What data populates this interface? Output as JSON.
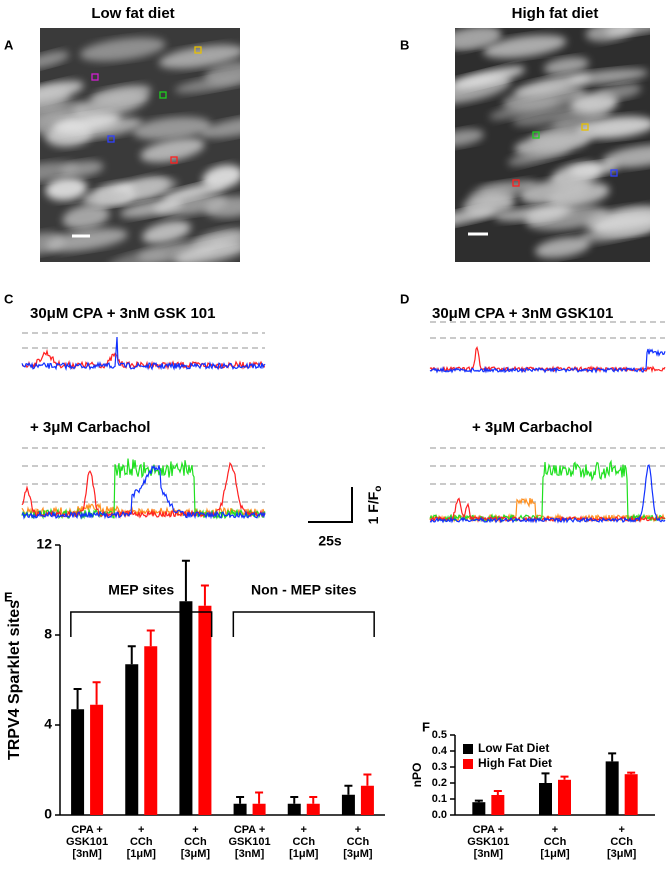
{
  "panels": {
    "A": {
      "letter": "A",
      "title": "Low fat diet"
    },
    "B": {
      "letter": "B",
      "title": "High fat diet"
    },
    "C": {
      "letter": "C",
      "label_top": "30μM  CPA + 3nM GSK 101",
      "label_bottom": "+ 3μM Carbachol"
    },
    "D": {
      "letter": "D",
      "label_top": "30μM  CPA + 3nM GSK101",
      "label_bottom": "+ 3μM Carbachol"
    },
    "scale_bar": {
      "time": "25s",
      "amplitude": "1 F/F",
      "amplitude_sub": "o"
    }
  },
  "chart_data": [
    {
      "type": "bar",
      "panel_letter": "E",
      "ylabel": "TRPV4 Sparklet sites",
      "annotations": [
        "MEP sites",
        "Non - MEP sites"
      ],
      "categories": [
        [
          "CPA +",
          "GSK101",
          "[3nM]"
        ],
        [
          "+",
          "CCh",
          "[1μM]"
        ],
        [
          "+",
          "CCh",
          "[3μM]"
        ],
        [
          "CPA +",
          "GSK101",
          "[3nM]"
        ],
        [
          "+",
          "CCh",
          "[1μM]"
        ],
        [
          "+",
          "CCh",
          "[3μM]"
        ]
      ],
      "series": [
        {
          "color": "#000000",
          "values": [
            4.7,
            6.7,
            9.5,
            0.5,
            0.5,
            0.9
          ],
          "errors": [
            0.9,
            0.8,
            1.8,
            0.3,
            0.3,
            0.4
          ]
        },
        {
          "color": "#ff0000",
          "values": [
            4.9,
            7.5,
            9.3,
            0.5,
            0.5,
            1.3
          ],
          "errors": [
            1.0,
            0.7,
            0.9,
            0.5,
            0.3,
            0.5
          ]
        }
      ],
      "ylim": [
        0,
        12
      ],
      "yticks": [
        0,
        4,
        8,
        12
      ]
    },
    {
      "type": "bar",
      "panel_letter": "F",
      "ylabel": "nPO",
      "legend": "upper left",
      "categories": [
        [
          "CPA +",
          "GSK101",
          "[3nM]"
        ],
        [
          "+",
          "CCh",
          "[1μM]"
        ],
        [
          "+",
          "CCh",
          "[3μM]"
        ]
      ],
      "series": [
        {
          "name": "Low Fat Diet",
          "color": "#000000",
          "values": [
            0.08,
            0.2,
            0.335
          ],
          "errors": [
            0.01,
            0.06,
            0.05
          ]
        },
        {
          "name": "High Fat Diet",
          "color": "#ff0000",
          "values": [
            0.125,
            0.22,
            0.255
          ],
          "errors": [
            0.025,
            0.02,
            0.01
          ]
        }
      ],
      "ylim": [
        0,
        0.5
      ],
      "yticks": [
        {
          "value": 0,
          "label": "0.0"
        },
        0.1,
        0.2,
        0.3,
        0.4,
        0.5
      ]
    }
  ]
}
